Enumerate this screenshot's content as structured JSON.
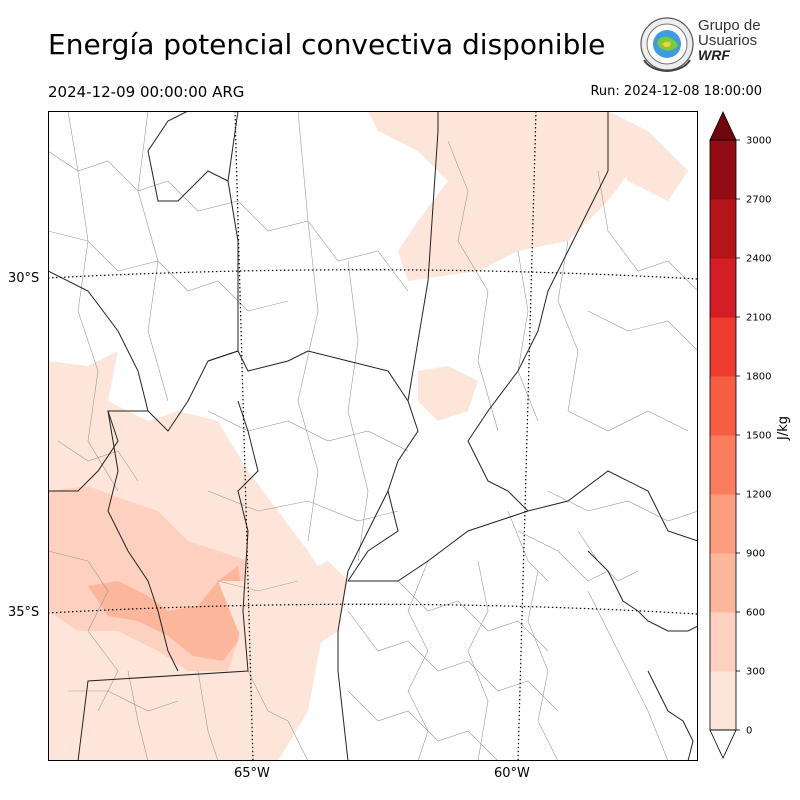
{
  "header": {
    "title": "Energía potencial convectiva disponible",
    "valid_time": "2024-12-09 00:00:00 ARG",
    "run_time": "Run: 2024-12-08 18:00:00"
  },
  "logo": {
    "line1": "Grupo de",
    "line2": "Usuarios",
    "line3": "WRF"
  },
  "map": {
    "lat_labels": [
      "30°S",
      "35°S"
    ],
    "lon_labels": [
      "65°W",
      "60°W"
    ]
  },
  "colorbar": {
    "unit": "J/kg",
    "ticks": [
      "0",
      "300",
      "600",
      "900",
      "1200",
      "1500",
      "1800",
      "2100",
      "2400",
      "2700",
      "3000"
    ],
    "colors": [
      "#fee5d9",
      "#fdd0c0",
      "#fcb69b",
      "#fc9d7f",
      "#fb7d5d",
      "#f65e43",
      "#ec3b2f",
      "#d21f25",
      "#b51419",
      "#930b13",
      "#6f0610"
    ],
    "extend": "both"
  }
}
